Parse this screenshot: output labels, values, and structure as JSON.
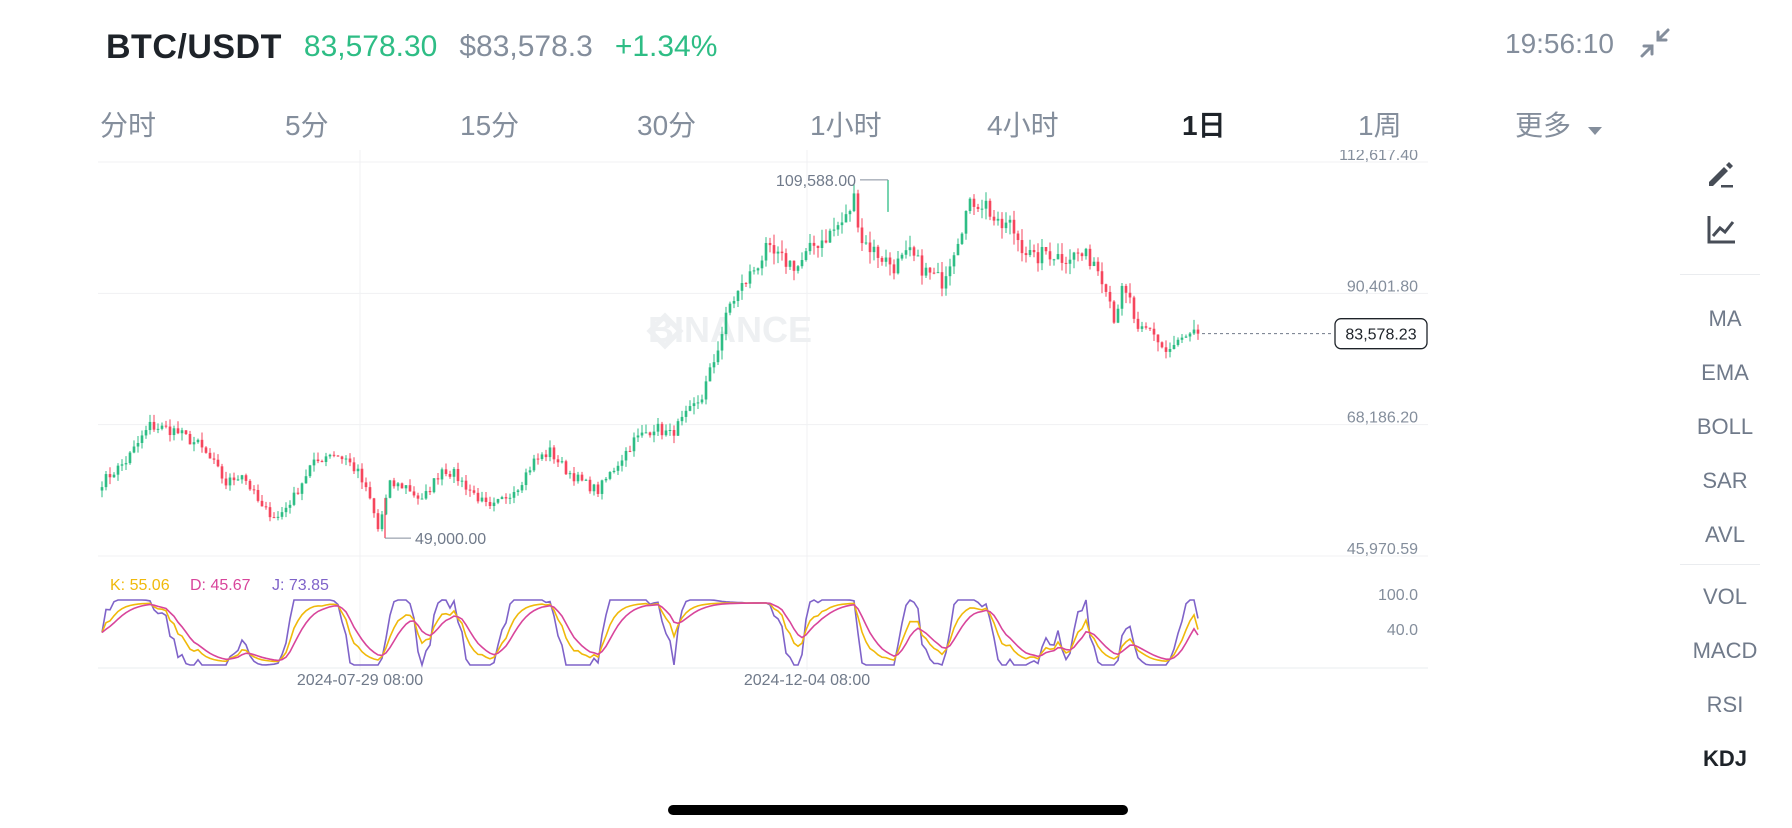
{
  "header": {
    "pair": "BTC/USDT",
    "last_price": "83,578.30",
    "usd_price": "$83,578.3",
    "change_pct": "+1.34%",
    "clock": "19:56:10"
  },
  "tabs": [
    {
      "label": "分时",
      "active": false
    },
    {
      "label": "5分",
      "active": false
    },
    {
      "label": "15分",
      "active": false
    },
    {
      "label": "30分",
      "active": false
    },
    {
      "label": "1小时",
      "active": false
    },
    {
      "label": "4小时",
      "active": false
    },
    {
      "label": "1日",
      "active": true
    },
    {
      "label": "1周",
      "active": false
    },
    {
      "label": "更多",
      "active": false
    }
  ],
  "indicators_main": [
    "MA",
    "EMA",
    "BOLL",
    "SAR",
    "AVL"
  ],
  "indicators_sub": [
    "VOL",
    "MACD",
    "RSI",
    "KDJ"
  ],
  "active_sub_indicator": "KDJ",
  "icons": {
    "collapse": "collapse-arrows-icon",
    "draw": "pencil-draw-icon",
    "indicator": "chart-indicator-icon",
    "more_caret": "caret-down-icon"
  },
  "colors": {
    "up": "#2ebd85",
    "down": "#f6465d",
    "k": "#f0b90b",
    "d": "#d8459b",
    "j": "#7f63c9"
  },
  "watermark": "BINANCE",
  "chart_data": {
    "type": "candlestick",
    "y_axis_labels": [
      "112,617.40",
      "90,401.80",
      "68,186.20",
      "45,970.59"
    ],
    "ylim": [
      45970.59,
      112617.4
    ],
    "current_price_label": "83,578.23",
    "current_price": 83578.23,
    "high_marker": {
      "label": "109,588.00",
      "value": 109588.0
    },
    "low_marker": {
      "label": "49,000.00",
      "value": 49000.0
    },
    "x_axis_labels": [
      "2024-07-29 08:00",
      "2024-12-04 08:00"
    ],
    "close_path": [
      [
        0,
        58500
      ],
      [
        6,
        62000
      ],
      [
        12,
        68000
      ],
      [
        18,
        67200
      ],
      [
        24,
        64800
      ],
      [
        28,
        61500
      ],
      [
        31,
        58200
      ],
      [
        35,
        60000
      ],
      [
        40,
        54000
      ],
      [
        44,
        52500
      ],
      [
        48,
        56000
      ],
      [
        52,
        61000
      ],
      [
        57,
        63500
      ],
      [
        61,
        62400
      ],
      [
        64,
        60000
      ],
      [
        67,
        55500
      ],
      [
        69,
        50500
      ],
      [
        72,
        58000
      ],
      [
        76,
        57800
      ],
      [
        80,
        55200
      ],
      [
        85,
        60800
      ],
      [
        88,
        59800
      ],
      [
        93,
        56500
      ],
      [
        97,
        53800
      ],
      [
        100,
        55500
      ],
      [
        104,
        57800
      ],
      [
        108,
        62000
      ],
      [
        112,
        63600
      ],
      [
        116,
        60500
      ],
      [
        120,
        58500
      ],
      [
        124,
        57000
      ],
      [
        128,
        60800
      ],
      [
        133,
        65500
      ],
      [
        138,
        67800
      ],
      [
        142,
        66500
      ],
      [
        146,
        69500
      ],
      [
        150,
        73000
      ],
      [
        153,
        79000
      ],
      [
        157,
        88500
      ],
      [
        162,
        93500
      ],
      [
        166,
        97500
      ],
      [
        170,
        96000
      ],
      [
        174,
        95000
      ],
      [
        178,
        98500
      ],
      [
        182,
        100500
      ],
      [
        186,
        103000
      ],
      [
        188,
        106500
      ],
      [
        190,
        99500
      ],
      [
        194,
        97000
      ],
      [
        198,
        95000
      ],
      [
        202,
        97000
      ],
      [
        206,
        94000
      ],
      [
        210,
        92500
      ],
      [
        213,
        98000
      ],
      [
        216,
        104000
      ],
      [
        218,
        106000
      ],
      [
        221,
        105500
      ],
      [
        224,
        101500
      ],
      [
        227,
        102000
      ],
      [
        230,
        98500
      ],
      [
        233,
        96000
      ],
      [
        236,
        97500
      ],
      [
        240,
        96500
      ],
      [
        244,
        97000
      ],
      [
        248,
        96000
      ],
      [
        251,
        92000
      ],
      [
        253,
        86500
      ],
      [
        255,
        90500
      ],
      [
        257,
        89000
      ],
      [
        259,
        83500
      ],
      [
        262,
        84000
      ],
      [
        264,
        82500
      ],
      [
        266,
        80500
      ],
      [
        270,
        82500
      ],
      [
        274,
        83578
      ]
    ],
    "kdj": {
      "k_label": "K: 55.06",
      "d_label": "D: 45.67",
      "j_label": "J: 73.85",
      "k_value": 55.06,
      "d_value": 45.67,
      "j_value": 73.85,
      "y_axis_labels": [
        "100.0",
        "40.0"
      ]
    }
  }
}
